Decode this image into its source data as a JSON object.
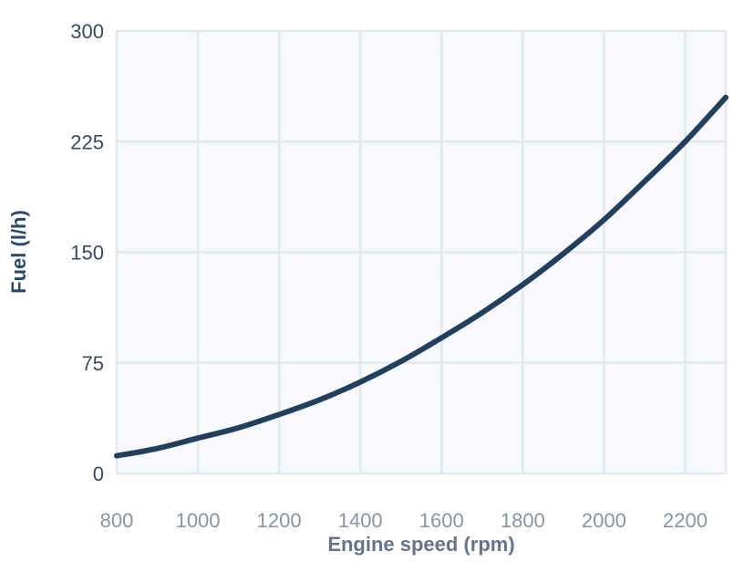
{
  "chart_data": {
    "type": "line",
    "title": "",
    "xlabel": "Engine speed (rpm)",
    "ylabel": "Fuel (l/h)",
    "xlim": [
      800,
      2300
    ],
    "ylim": [
      0,
      300
    ],
    "x_ticks": [
      800,
      1000,
      1200,
      1400,
      1600,
      1800,
      2000,
      2200
    ],
    "y_ticks": [
      0,
      75,
      150,
      225,
      300
    ],
    "grid": true,
    "series": [
      {
        "x": [
          800,
          900,
          1000,
          1100,
          1200,
          1300,
          1400,
          1500,
          1600,
          1700,
          1800,
          1900,
          2000,
          2100,
          2200,
          2300
        ],
        "y": [
          12,
          17,
          24,
          31,
          40,
          50,
          62,
          76,
          92,
          109,
          128,
          149,
          172,
          198,
          225,
          255
        ]
      }
    ],
    "colors": {
      "line": "#22405e",
      "plot_background": "#f7f9fc",
      "grid": "#e4e8ee"
    }
  }
}
